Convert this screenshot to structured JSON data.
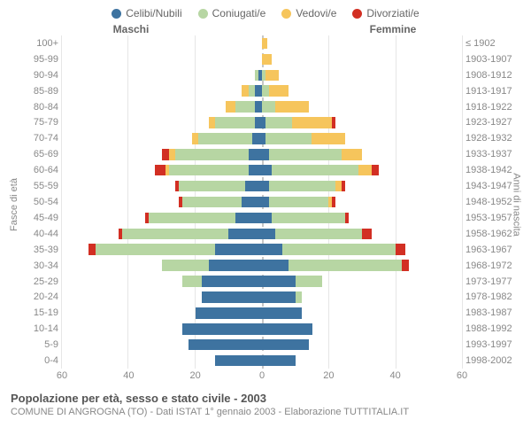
{
  "legend": [
    {
      "label": "Celibi/Nubili",
      "color": "#3e73a0"
    },
    {
      "label": "Coniugati/e",
      "color": "#b7d6a3"
    },
    {
      "label": "Vedovi/e",
      "color": "#f6c55c"
    },
    {
      "label": "Divorziati/e",
      "color": "#d22f23"
    }
  ],
  "titles": {
    "left_col": "Maschi",
    "right_col": "Femmine",
    "yaxis_left": "Fasce di età",
    "yaxis_right": "Anni di nascita"
  },
  "xaxis": {
    "max": 60,
    "ticks": [
      0,
      20,
      40,
      60
    ]
  },
  "age_groups": [
    "100+",
    "95-99",
    "90-94",
    "85-89",
    "80-84",
    "75-79",
    "70-74",
    "65-69",
    "60-64",
    "55-59",
    "50-54",
    "45-49",
    "40-44",
    "35-39",
    "30-34",
    "25-29",
    "20-24",
    "15-19",
    "10-14",
    "5-9",
    "0-4"
  ],
  "birth_years": [
    "≤ 1902",
    "1903-1907",
    "1908-1912",
    "1913-1917",
    "1918-1922",
    "1923-1927",
    "1928-1932",
    "1933-1937",
    "1938-1942",
    "1943-1947",
    "1948-1952",
    "1953-1957",
    "1958-1962",
    "1963-1967",
    "1968-1972",
    "1973-1977",
    "1978-1982",
    "1983-1987",
    "1988-1992",
    "1993-1997",
    "1998-2002"
  ],
  "male": [
    {
      "c": 0,
      "m": 0,
      "w": 0,
      "d": 0
    },
    {
      "c": 0,
      "m": 0,
      "w": 0,
      "d": 0
    },
    {
      "c": 1,
      "m": 1,
      "w": 0,
      "d": 0
    },
    {
      "c": 2,
      "m": 2,
      "w": 2,
      "d": 0
    },
    {
      "c": 2,
      "m": 6,
      "w": 3,
      "d": 0
    },
    {
      "c": 2,
      "m": 12,
      "w": 2,
      "d": 0
    },
    {
      "c": 3,
      "m": 16,
      "w": 2,
      "d": 0
    },
    {
      "c": 4,
      "m": 22,
      "w": 2,
      "d": 2
    },
    {
      "c": 4,
      "m": 24,
      "w": 1,
      "d": 3
    },
    {
      "c": 5,
      "m": 20,
      "w": 0,
      "d": 1
    },
    {
      "c": 6,
      "m": 18,
      "w": 0,
      "d": 1
    },
    {
      "c": 8,
      "m": 26,
      "w": 0,
      "d": 1
    },
    {
      "c": 10,
      "m": 32,
      "w": 0,
      "d": 1
    },
    {
      "c": 14,
      "m": 36,
      "w": 0,
      "d": 2
    },
    {
      "c": 16,
      "m": 14,
      "w": 0,
      "d": 0
    },
    {
      "c": 18,
      "m": 6,
      "w": 0,
      "d": 0
    },
    {
      "c": 18,
      "m": 0,
      "w": 0,
      "d": 0
    },
    {
      "c": 20,
      "m": 0,
      "w": 0,
      "d": 0
    },
    {
      "c": 24,
      "m": 0,
      "w": 0,
      "d": 0
    },
    {
      "c": 22,
      "m": 0,
      "w": 0,
      "d": 0
    },
    {
      "c": 14,
      "m": 0,
      "w": 0,
      "d": 0
    }
  ],
  "female": [
    {
      "c": 0,
      "m": 0,
      "w": 1.5,
      "d": 0
    },
    {
      "c": 0,
      "m": 0,
      "w": 3,
      "d": 0
    },
    {
      "c": 0,
      "m": 1,
      "w": 4,
      "d": 0
    },
    {
      "c": 0,
      "m": 2,
      "w": 6,
      "d": 0
    },
    {
      "c": 0,
      "m": 4,
      "w": 10,
      "d": 0
    },
    {
      "c": 1,
      "m": 8,
      "w": 12,
      "d": 1
    },
    {
      "c": 1,
      "m": 14,
      "w": 10,
      "d": 0
    },
    {
      "c": 2,
      "m": 22,
      "w": 6,
      "d": 0
    },
    {
      "c": 3,
      "m": 26,
      "w": 4,
      "d": 2
    },
    {
      "c": 2,
      "m": 20,
      "w": 2,
      "d": 1
    },
    {
      "c": 2,
      "m": 18,
      "w": 1,
      "d": 1
    },
    {
      "c": 3,
      "m": 22,
      "w": 0,
      "d": 1
    },
    {
      "c": 4,
      "m": 26,
      "w": 0,
      "d": 3
    },
    {
      "c": 6,
      "m": 34,
      "w": 0,
      "d": 3
    },
    {
      "c": 8,
      "m": 34,
      "w": 0,
      "d": 2
    },
    {
      "c": 10,
      "m": 8,
      "w": 0,
      "d": 0
    },
    {
      "c": 10,
      "m": 2,
      "w": 0,
      "d": 0
    },
    {
      "c": 12,
      "m": 0,
      "w": 0,
      "d": 0
    },
    {
      "c": 15,
      "m": 0,
      "w": 0,
      "d": 0
    },
    {
      "c": 14,
      "m": 0,
      "w": 0,
      "d": 0
    },
    {
      "c": 10,
      "m": 0,
      "w": 0,
      "d": 0
    }
  ],
  "footer": {
    "title": "Popolazione per età, sesso e stato civile - 2003",
    "sub": "COMUNE DI ANGROGNA (TO) - Dati ISTAT 1° gennaio 2003 - Elaborazione TUTTITALIA.IT"
  },
  "style": {
    "background": "#ffffff",
    "grid_color": "#e6e6e6",
    "centerline_color": "#c7c7c7",
    "text_color": "#888888",
    "title_color": "#555555",
    "bar_height_ratio": 0.7
  }
}
